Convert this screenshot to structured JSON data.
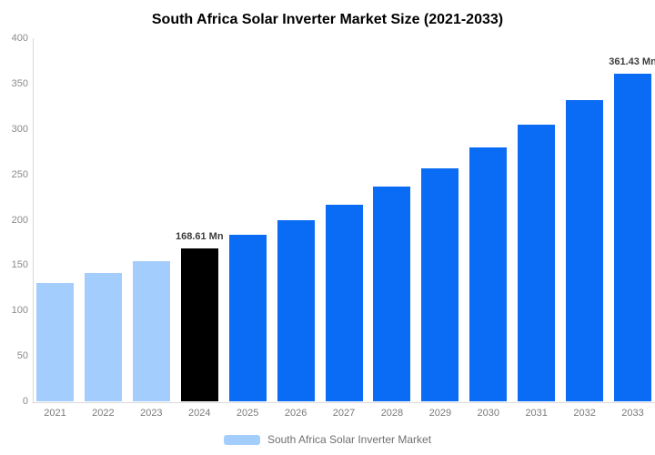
{
  "title": "South Africa Solar Inverter Market Size (2021-2033)",
  "chart_data": {
    "type": "bar",
    "title": "South Africa Solar Inverter Market Size (2021-2033)",
    "categories": [
      "2021",
      "2022",
      "2023",
      "2024",
      "2025",
      "2026",
      "2027",
      "2028",
      "2029",
      "2030",
      "2031",
      "2032",
      "2033"
    ],
    "values": [
      130.8,
      142.32,
      154.91,
      168.61,
      183.52,
      199.75,
      217.41,
      236.64,
      257.56,
      280.33,
      305.12,
      332.1,
      361.43
    ],
    "bar_colors": [
      "#a3cdfc",
      "#a3cdfc",
      "#a3cdfc",
      "#000000",
      "#0a6cf4",
      "#0a6cf4",
      "#0a6cf4",
      "#0a6cf4",
      "#0a6cf4",
      "#0a6cf4",
      "#0a6cf4",
      "#0a6cf4",
      "#0a6cf4"
    ],
    "point_labels": [
      "",
      "",
      "",
      "168.61 Mn",
      "",
      "",
      "",
      "",
      "",
      "",
      "",
      "",
      "361.43 Mn"
    ],
    "xlabel": "",
    "ylabel": "",
    "ylim": [
      0,
      400
    ],
    "yticks": [
      0,
      50,
      100,
      150,
      200,
      250,
      300,
      350,
      400
    ],
    "grid": false,
    "legend": {
      "position": "bottom",
      "items": [
        {
          "label": "South Africa Solar Inverter Market",
          "color": "#a3cdfc"
        }
      ]
    }
  },
  "colors": {
    "historical_bar": "#a3cdfc",
    "base_year_bar": "#000000",
    "forecast_bar": "#0a6cf4",
    "axis_line": "#d9d9d9",
    "tick_text": "#8a8a8a",
    "value_label_text": "#3c3c3c"
  }
}
